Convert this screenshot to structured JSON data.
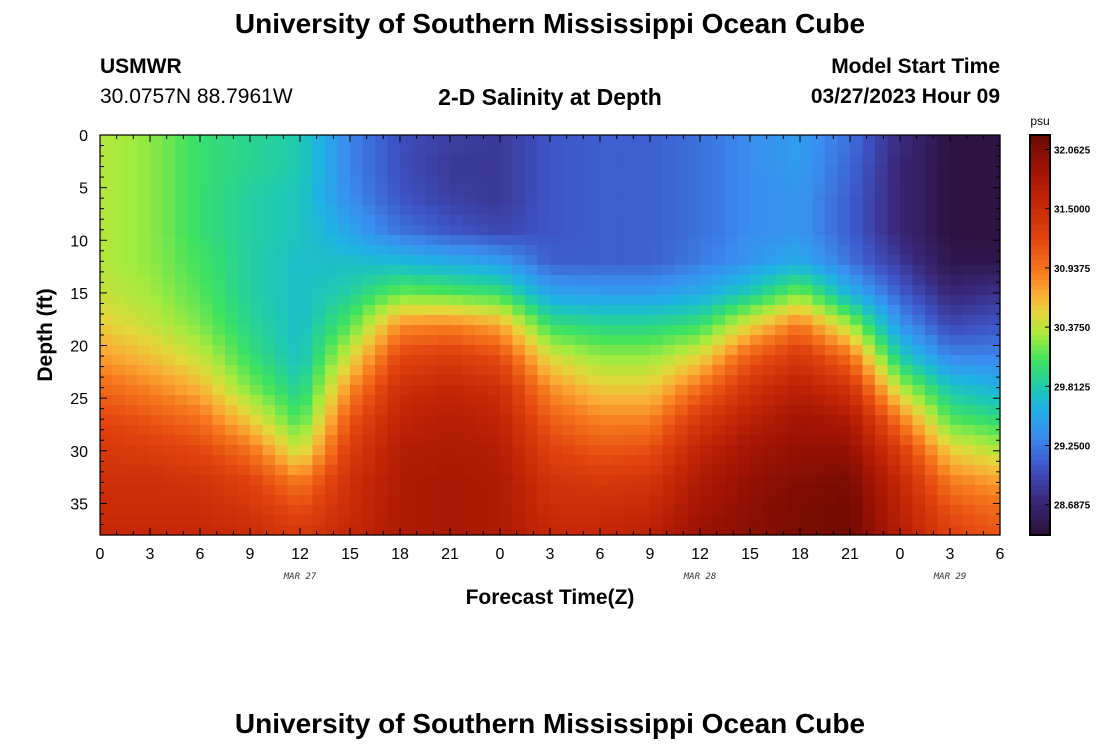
{
  "header": {
    "title": "University of Southern Mississippi Ocean Cube",
    "station": "USMWR",
    "coords": "30.0757N  88.7961W",
    "subtitle": "2-D Salinity at Depth",
    "run_label": "Model Start Time",
    "run_date": "03/27/2023 Hour 09"
  },
  "footer": {
    "title": "University of Southern Mississippi Ocean Cube"
  },
  "chart_data": {
    "type": "heatmap",
    "xlabel": "Forecast Time(Z)",
    "ylabel": "Depth (ft)",
    "x_tick_labels": [
      "0",
      "3",
      "6",
      "9",
      "12",
      "15",
      "18",
      "21",
      "0",
      "3",
      "6",
      "9",
      "12",
      "15",
      "18",
      "21",
      "0",
      "3",
      "6"
    ],
    "date_labels": [
      {
        "text": "MAR 27",
        "at_hour": 12
      },
      {
        "text": "MAR 28",
        "at_hour": 36
      },
      {
        "text": "MAR 29",
        "at_hour": 51
      }
    ],
    "y_ticks": [
      0,
      5,
      10,
      15,
      20,
      25,
      30,
      35
    ],
    "ylim": [
      0,
      38
    ],
    "xlim_hours": [
      0,
      54
    ],
    "colorbar": {
      "unit": "psu",
      "tick_labels": [
        "32.0625",
        "31.5000",
        "30.9375",
        "30.3750",
        "29.8125",
        "29.2500",
        "28.6875"
      ],
      "min": 28.4,
      "max": 32.2
    },
    "colormap": [
      [
        28.4,
        "#2a0f38"
      ],
      [
        28.75,
        "#3a2a7e"
      ],
      [
        29.05,
        "#3e55c8"
      ],
      [
        29.35,
        "#3a8ef0"
      ],
      [
        29.6,
        "#1fb2e4"
      ],
      [
        29.8,
        "#1ecab0"
      ],
      [
        30.05,
        "#3ee260"
      ],
      [
        30.3,
        "#a6ea3e"
      ],
      [
        30.5,
        "#e2d83a"
      ],
      [
        30.7,
        "#fbaa35"
      ],
      [
        30.9,
        "#f6781d"
      ],
      [
        31.2,
        "#e3450f"
      ],
      [
        31.55,
        "#c42706"
      ],
      [
        31.85,
        "#a31404"
      ],
      [
        32.2,
        "#6a0903"
      ]
    ],
    "grid_hours": [
      0,
      3,
      6,
      9,
      12,
      15,
      18,
      21,
      24,
      27,
      30,
      33,
      36,
      39,
      42,
      45,
      48,
      51,
      54
    ],
    "grid_depths": [
      0,
      3,
      6,
      9,
      12,
      15,
      18,
      21,
      24,
      27,
      30,
      33,
      36,
      38
    ],
    "salinity": [
      [
        30.35,
        30.35,
        30.35,
        30.35,
        30.35,
        30.4,
        30.55,
        30.75,
        31.0,
        31.2,
        31.35,
        31.45,
        31.5,
        31.55
      ],
      [
        30.25,
        30.25,
        30.25,
        30.25,
        30.25,
        30.3,
        30.4,
        30.6,
        30.85,
        31.1,
        31.3,
        31.45,
        31.5,
        31.55
      ],
      [
        30.0,
        30.0,
        30.0,
        30.0,
        30.05,
        30.1,
        30.2,
        30.4,
        30.65,
        30.95,
        31.2,
        31.4,
        31.5,
        31.55
      ],
      [
        29.9,
        29.9,
        29.85,
        29.85,
        29.85,
        29.85,
        29.9,
        30.0,
        30.2,
        30.55,
        30.95,
        31.25,
        31.4,
        31.5
      ],
      [
        29.8,
        29.8,
        29.75,
        29.75,
        29.7,
        29.7,
        29.7,
        29.72,
        29.85,
        30.05,
        30.4,
        30.9,
        31.2,
        31.35
      ],
      [
        29.3,
        29.3,
        29.35,
        29.5,
        29.7,
        29.85,
        30.1,
        30.45,
        30.8,
        31.1,
        31.3,
        31.45,
        31.5,
        31.55
      ],
      [
        29.0,
        29.0,
        29.05,
        29.2,
        29.65,
        30.15,
        30.8,
        31.2,
        31.45,
        31.6,
        31.7,
        31.75,
        31.75,
        31.75
      ],
      [
        28.9,
        28.85,
        28.9,
        29.05,
        29.55,
        30.1,
        30.85,
        31.3,
        31.55,
        31.7,
        31.75,
        31.8,
        31.8,
        31.8
      ],
      [
        28.85,
        28.85,
        28.85,
        28.95,
        29.45,
        30.0,
        30.7,
        31.15,
        31.45,
        31.6,
        31.7,
        31.75,
        31.75,
        31.75
      ],
      [
        29.05,
        29.05,
        29.05,
        29.05,
        29.1,
        29.5,
        30.0,
        30.45,
        30.8,
        31.05,
        31.25,
        31.4,
        31.5,
        31.55
      ],
      [
        29.1,
        29.1,
        29.1,
        29.1,
        29.1,
        29.45,
        29.9,
        30.25,
        30.55,
        30.85,
        31.1,
        31.35,
        31.5,
        31.55
      ],
      [
        29.1,
        29.1,
        29.1,
        29.1,
        29.1,
        29.45,
        29.9,
        30.25,
        30.55,
        30.85,
        31.15,
        31.4,
        31.55,
        31.65
      ],
      [
        29.2,
        29.2,
        29.2,
        29.2,
        29.25,
        29.55,
        30.0,
        30.5,
        30.95,
        31.35,
        31.6,
        31.75,
        31.85,
        31.9
      ],
      [
        29.35,
        29.35,
        29.35,
        29.35,
        29.4,
        29.8,
        30.5,
        31.05,
        31.4,
        31.65,
        31.85,
        31.95,
        32.0,
        32.0
      ],
      [
        29.45,
        29.45,
        29.4,
        29.4,
        29.55,
        30.2,
        30.9,
        31.35,
        31.65,
        31.85,
        31.95,
        32.05,
        32.1,
        32.1
      ],
      [
        29.2,
        29.15,
        29.1,
        29.1,
        29.2,
        29.6,
        30.3,
        30.95,
        31.4,
        31.75,
        31.95,
        32.1,
        32.15,
        32.15
      ],
      [
        28.75,
        28.7,
        28.7,
        28.7,
        28.85,
        29.1,
        29.4,
        29.8,
        30.35,
        30.9,
        31.3,
        31.55,
        31.65,
        31.7
      ],
      [
        28.45,
        28.45,
        28.45,
        28.45,
        28.5,
        28.7,
        28.95,
        29.3,
        29.75,
        30.1,
        30.55,
        30.9,
        31.15,
        31.25
      ],
      [
        28.45,
        28.45,
        28.45,
        28.45,
        28.5,
        28.8,
        29.05,
        29.3,
        29.6,
        29.95,
        30.35,
        30.75,
        31.0,
        31.1
      ]
    ]
  }
}
